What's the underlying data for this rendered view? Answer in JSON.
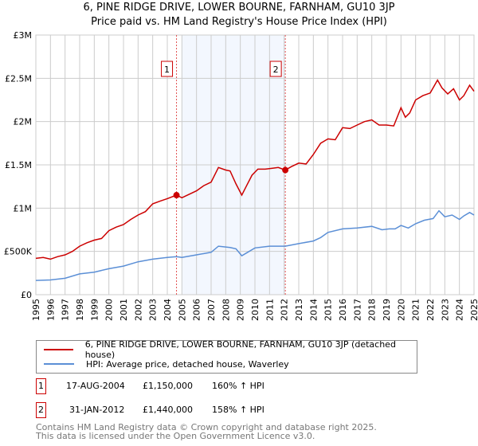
{
  "chart_data": {
    "type": "line",
    "title": "6, PINE RIDGE DRIVE, LOWER BOURNE, FARNHAM, GU10 3JP",
    "subtitle": "Price paid vs. HM Land Registry's House Price Index (HPI)",
    "xlim": [
      1995,
      2025
    ],
    "ylim": [
      0,
      3000000
    ],
    "x_ticks": [
      "1995",
      "1996",
      "1997",
      "1998",
      "1999",
      "2000",
      "2001",
      "2002",
      "2003",
      "2004",
      "2005",
      "2006",
      "2007",
      "2008",
      "2009",
      "2010",
      "2011",
      "2012",
      "2013",
      "2014",
      "2015",
      "2016",
      "2017",
      "2018",
      "2019",
      "2020",
      "2021",
      "2022",
      "2023",
      "2024",
      "2025"
    ],
    "y_ticks": [
      {
        "v": 0,
        "label": "£0"
      },
      {
        "v": 500000,
        "label": "£500K"
      },
      {
        "v": 1000000,
        "label": "£1M"
      },
      {
        "v": 1500000,
        "label": "£1.5M"
      },
      {
        "v": 2000000,
        "label": "£2M"
      },
      {
        "v": 2500000,
        "label": "£2.5M"
      },
      {
        "v": 3000000,
        "label": "£3M"
      }
    ],
    "grid": true,
    "shaded_range": [
      2005.0,
      2012.08
    ],
    "series": [
      {
        "name": "6, PINE RIDGE DRIVE, LOWER BOURNE, FARNHAM, GU10 3JP (detached house)",
        "color": "#cc0000",
        "x": [
          1995,
          1995.5,
          1996,
          1996.5,
          1997,
          1997.5,
          1998,
          1998.5,
          1999,
          1999.5,
          2000,
          2000.5,
          2001,
          2001.5,
          2002,
          2002.5,
          2003,
          2003.5,
          2004,
          2004.63,
          2005,
          2005.5,
          2006,
          2006.5,
          2007,
          2007.5,
          2008,
          2008.3,
          2008.7,
          2009.1,
          2009.4,
          2009.8,
          2010.2,
          2010.7,
          2011.2,
          2011.6,
          2012.08,
          2012.5,
          2013,
          2013.5,
          2014,
          2014.5,
          2015,
          2015.5,
          2016,
          2016.5,
          2017,
          2017.5,
          2018,
          2018.5,
          2019,
          2019.5,
          2020,
          2020.3,
          2020.6,
          2021,
          2021.5,
          2022,
          2022.5,
          2022.8,
          2023.2,
          2023.6,
          2024,
          2024.3,
          2024.7,
          2025
        ],
        "y": [
          420000,
          430000,
          410000,
          440000,
          460000,
          500000,
          560000,
          600000,
          630000,
          650000,
          740000,
          780000,
          810000,
          870000,
          920000,
          960000,
          1050000,
          1080000,
          1110000,
          1150000,
          1120000,
          1160000,
          1200000,
          1260000,
          1300000,
          1470000,
          1440000,
          1430000,
          1280000,
          1150000,
          1250000,
          1380000,
          1450000,
          1450000,
          1460000,
          1470000,
          1440000,
          1480000,
          1520000,
          1510000,
          1620000,
          1750000,
          1800000,
          1790000,
          1930000,
          1920000,
          1960000,
          2000000,
          2020000,
          1960000,
          1960000,
          1950000,
          2160000,
          2050000,
          2100000,
          2250000,
          2300000,
          2330000,
          2480000,
          2390000,
          2320000,
          2380000,
          2250000,
          2300000,
          2420000,
          2350000
        ]
      },
      {
        "name": "HPI: Average price, detached house, Waverley",
        "color": "#5b8fd6",
        "x": [
          1995,
          1996,
          1997,
          1998,
          1999,
          2000,
          2001,
          2002,
          2003,
          2004,
          2004.63,
          2005,
          2006,
          2007,
          2007.5,
          2008.3,
          2008.7,
          2009.1,
          2009.5,
          2010,
          2011,
          2012.08,
          2013,
          2014,
          2014.5,
          2015,
          2016,
          2017,
          2018,
          2018.7,
          2019.2,
          2019.6,
          2020,
          2020.5,
          2021,
          2021.6,
          2022.2,
          2022.6,
          2023,
          2023.5,
          2024,
          2024.3,
          2024.7,
          2025
        ],
        "y": [
          165000,
          170000,
          190000,
          240000,
          260000,
          300000,
          330000,
          380000,
          410000,
          430000,
          440000,
          430000,
          460000,
          490000,
          560000,
          545000,
          530000,
          450000,
          490000,
          540000,
          560000,
          560000,
          590000,
          620000,
          660000,
          720000,
          760000,
          770000,
          790000,
          750000,
          760000,
          760000,
          800000,
          770000,
          820000,
          860000,
          880000,
          970000,
          900000,
          920000,
          870000,
          910000,
          950000,
          920000
        ]
      }
    ],
    "sales": [
      {
        "label": "1",
        "x": 2004.63,
        "y": 1150000
      },
      {
        "label": "2",
        "x": 2012.08,
        "y": 1440000
      }
    ]
  },
  "transactions": [
    {
      "num": "1",
      "date": "17-AUG-2004",
      "price": "£1,150,000",
      "delta": "160% ↑ HPI"
    },
    {
      "num": "2",
      "date": "31-JAN-2012",
      "price": "£1,440,000",
      "delta": "158% ↑ HPI"
    }
  ],
  "footer": [
    "Contains HM Land Registry data © Crown copyright and database right 2025.",
    "This data is licensed under the Open Government Licence v3.0."
  ]
}
